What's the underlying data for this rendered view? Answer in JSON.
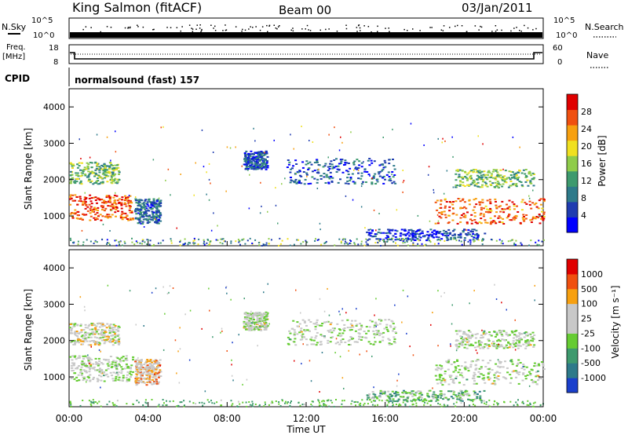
{
  "header": {
    "station": "King Salmon (fitACF)",
    "beam": "Beam 00",
    "date": "03/Jan/2011"
  },
  "top_panels": {
    "nsky_label": "N.Sky",
    "nsearch_label": "N.Search",
    "nsky_ticks": [
      "10^5",
      "10^0"
    ],
    "nsearch_ticks": [
      "10^5",
      "10^0"
    ],
    "freq_label": "Freq.",
    "freq_unit": "[MHz]",
    "freq_ticks": [
      "18",
      "8"
    ],
    "nave_label": "Nave",
    "nave_ticks": [
      "60",
      "0"
    ],
    "cpid_label": "CPID",
    "cpid_value": "normalsound (fast) 157"
  },
  "chart_data": [
    {
      "type": "heatmap",
      "name": "power",
      "ylabel": "Slant Range [km]",
      "yticks": [
        "4000",
        "3000",
        "2000",
        "1000"
      ],
      "ylim": [
        180,
        4500
      ],
      "colorbar_label": "Power [dB]",
      "colorbar_ticks": [
        "28",
        "24",
        "20",
        "16",
        "12",
        "8",
        "4"
      ],
      "colors": [
        "#0000ff",
        "#1f3cb0",
        "#2e7a8a",
        "#3e9a6e",
        "#8fcc4a",
        "#f0e020",
        "#f7a010",
        "#f05010",
        "#e00000"
      ],
      "regions": [
        {
          "x": [
            0.0,
            3.2
          ],
          "y": [
            900,
            1600
          ],
          "level": 0.85
        },
        {
          "x": [
            0.0,
            2.5
          ],
          "y": [
            1900,
            2500
          ],
          "level": 0.45
        },
        {
          "x": [
            3.3,
            4.6
          ],
          "y": [
            800,
            1500
          ],
          "level": 0.25
        },
        {
          "x": [
            8.8,
            10.0
          ],
          "y": [
            2300,
            2800
          ],
          "level": 0.2
        },
        {
          "x": [
            11.0,
            16.5
          ],
          "y": [
            1900,
            2600
          ],
          "level": 0.2
        },
        {
          "x": [
            15.0,
            21.0
          ],
          "y": [
            350,
            650
          ],
          "level": 0.15
        },
        {
          "x": [
            18.5,
            24.0
          ],
          "y": [
            800,
            1500
          ],
          "level": 0.8
        },
        {
          "x": [
            19.5,
            23.5
          ],
          "y": [
            1800,
            2300
          ],
          "level": 0.45
        }
      ]
    },
    {
      "type": "heatmap",
      "name": "velocity",
      "ylabel": "Slant Range [km]",
      "yticks": [
        "4000",
        "3000",
        "2000",
        "1000"
      ],
      "ylim": [
        180,
        4500
      ],
      "xlabel": "Time UT",
      "xticks": [
        "00:00",
        "04:00",
        "08:00",
        "12:00",
        "16:00",
        "20:00",
        "00:00"
      ],
      "xlim": [
        0,
        24
      ],
      "colorbar_label": "Velocity [m s⁻¹]",
      "colorbar_ticks": [
        "1000",
        "500",
        "100",
        "25",
        "-25",
        "-100",
        "-500",
        "-1000"
      ],
      "colors": [
        "#1a3fcc",
        "#2e7a8a",
        "#3e9a6e",
        "#66cc33",
        "#c8c8c8",
        "#c8c8c8",
        "#f7a010",
        "#f05010",
        "#e00000"
      ],
      "regions": [
        {
          "x": [
            0.0,
            3.2
          ],
          "y": [
            900,
            1600
          ],
          "level": 0.5
        },
        {
          "x": [
            0.0,
            2.5
          ],
          "y": [
            1900,
            2500
          ],
          "level": 0.55
        },
        {
          "x": [
            3.3,
            4.6
          ],
          "y": [
            800,
            1500
          ],
          "level": 0.65
        },
        {
          "x": [
            8.8,
            10.0
          ],
          "y": [
            2300,
            2800
          ],
          "level": 0.5
        },
        {
          "x": [
            11.0,
            16.5
          ],
          "y": [
            1900,
            2600
          ],
          "level": 0.5
        },
        {
          "x": [
            15.0,
            21.0
          ],
          "y": [
            350,
            650
          ],
          "level": 0.35
        },
        {
          "x": [
            18.5,
            24.0
          ],
          "y": [
            800,
            1500
          ],
          "level": 0.5
        },
        {
          "x": [
            19.5,
            23.5
          ],
          "y": [
            1800,
            2300
          ],
          "level": 0.5
        }
      ]
    }
  ]
}
